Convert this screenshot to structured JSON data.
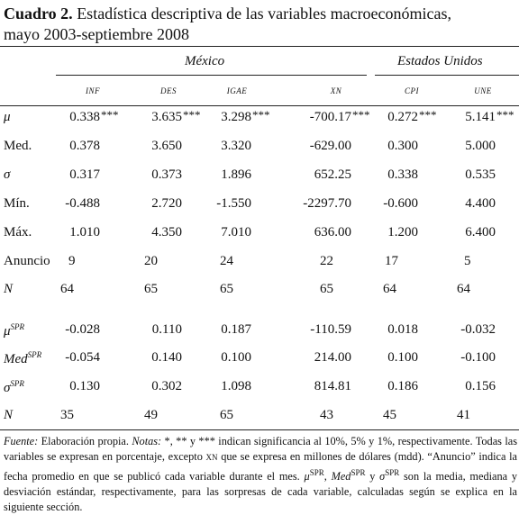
{
  "title": {
    "label": "Cuadro 2.",
    "text": "Estadística descriptiva de las variables macroeconómicas,",
    "text2": "mayo 2003-septiembre 2008"
  },
  "table": {
    "groups": [
      "México",
      "Estados Unidos"
    ],
    "columns": [
      "INF",
      "DES",
      "IGAE",
      "XN",
      "CPI",
      "UNE"
    ],
    "rows": [
      {
        "label": {
          "base": "μ"
        },
        "cells": [
          {
            "text": "0.338",
            "sig": "***"
          },
          {
            "text": "3.635",
            "sig": "***"
          },
          {
            "text": "3.298",
            "sig": "***"
          },
          {
            "text": "-700.17",
            "sig": "***"
          },
          {
            "text": "0.272",
            "sig": "***"
          },
          {
            "text": "5.141",
            "sig": "***"
          }
        ]
      },
      {
        "label": {
          "base": "Med."
        },
        "cells": [
          {
            "text": "0.378"
          },
          {
            "text": "3.650"
          },
          {
            "text": "3.320"
          },
          {
            "text": "-629.00"
          },
          {
            "text": "0.300"
          },
          {
            "text": "5.000"
          }
        ]
      },
      {
        "label": {
          "base": "σ"
        },
        "cells": [
          {
            "text": "0.317"
          },
          {
            "text": "0.373"
          },
          {
            "text": "1.896"
          },
          {
            "text": "652.25"
          },
          {
            "text": "0.338"
          },
          {
            "text": "0.535"
          }
        ]
      },
      {
        "label": {
          "base": "Mín."
        },
        "cells": [
          {
            "text": "-0.488"
          },
          {
            "text": "2.720"
          },
          {
            "text": "-1.550"
          },
          {
            "text": "-2297.70"
          },
          {
            "text": "-0.600"
          },
          {
            "text": "4.400"
          }
        ]
      },
      {
        "label": {
          "base": "Máx."
        },
        "cells": [
          {
            "text": "1.010"
          },
          {
            "text": "4.350"
          },
          {
            "text": "7.010"
          },
          {
            "text": "636.00"
          },
          {
            "text": "1.200"
          },
          {
            "text": "6.400"
          }
        ]
      },
      {
        "label": {
          "base": "Anuncio"
        },
        "cells": [
          {
            "text": "9"
          },
          {
            "text": "20"
          },
          {
            "text": "24"
          },
          {
            "text": "22"
          },
          {
            "text": "17"
          },
          {
            "text": "5"
          }
        ]
      },
      {
        "label": {
          "base": "N"
        },
        "cells": [
          {
            "text": "64"
          },
          {
            "text": "65"
          },
          {
            "text": "65"
          },
          {
            "text": "65"
          },
          {
            "text": "64"
          },
          {
            "text": "64"
          }
        ]
      },
      {
        "label": {
          "base": "μ",
          "sup": "SPR"
        },
        "cells": [
          {
            "text": "-0.028"
          },
          {
            "text": "0.110"
          },
          {
            "text": "0.187"
          },
          {
            "text": "-110.59"
          },
          {
            "text": "0.018"
          },
          {
            "text": "-0.032"
          }
        ]
      },
      {
        "label": {
          "base": "Med",
          "sup": "SPR"
        },
        "cells": [
          {
            "text": "-0.054"
          },
          {
            "text": "0.140"
          },
          {
            "text": "0.100"
          },
          {
            "text": "214.00"
          },
          {
            "text": "0.100"
          },
          {
            "text": "-0.100"
          }
        ]
      },
      {
        "label": {
          "base": "σ",
          "sup": "SPR"
        },
        "cells": [
          {
            "text": "0.130"
          },
          {
            "text": "0.302"
          },
          {
            "text": "1.098"
          },
          {
            "text": "814.81"
          },
          {
            "text": "0.186"
          },
          {
            "text": "0.156"
          }
        ]
      },
      {
        "label": {
          "base": "N"
        },
        "cells": [
          {
            "text": "35"
          },
          {
            "text": "49"
          },
          {
            "text": "65"
          },
          {
            "text": "43"
          },
          {
            "text": "45"
          },
          {
            "text": "41"
          }
        ]
      }
    ]
  },
  "footnote": {
    "parts": [
      "Fuente:",
      " Elaboración propia. ",
      "Notas:",
      " *, ** y *** indican significancia al 10%, 5% y 1%, respectivamente. Todas las variables se expresan en porcentaje, excepto ",
      "XN",
      " que se expresa en millones de dólares (mdd). “Anuncio” indica la fecha promedio en que se publicó cada variable durante el mes. ",
      "μ",
      "SPR",
      ", ",
      "Med",
      "SPR",
      " y ",
      "σ",
      "SPR",
      " son la media, mediana y desviación estándar, respectivamente, para las sorpresas de cada variable, calculadas según se explica en la siguiente sección."
    ]
  }
}
